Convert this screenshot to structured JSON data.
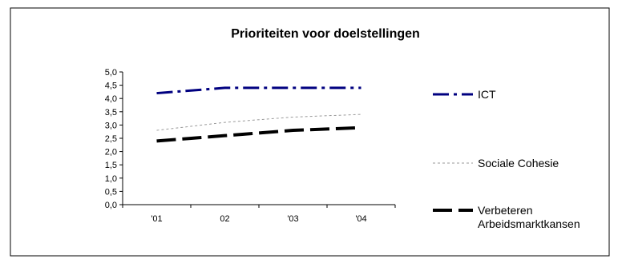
{
  "chart_data": {
    "type": "line",
    "title": "Prioriteiten voor doelstellingen",
    "xlabel": "",
    "ylabel": "",
    "categories": [
      "'01",
      "02",
      "'03",
      "'04"
    ],
    "ylim": [
      0,
      5
    ],
    "y_ticks": [
      "0,0",
      "0,5",
      "1,0",
      "1,5",
      "2,0",
      "2,5",
      "3,0",
      "3,5",
      "4,0",
      "4,5",
      "5,0"
    ],
    "grid": false,
    "legend_position": "right",
    "series": [
      {
        "name": "ICT",
        "values": [
          4.2,
          4.4,
          4.4,
          4.4
        ],
        "color": "#000080",
        "style": "dash-dot"
      },
      {
        "name": "Sociale Cohesie",
        "values": [
          2.8,
          3.1,
          3.3,
          3.4
        ],
        "color": "#999999",
        "style": "dotted"
      },
      {
        "name": "Verbeteren Arbeidsmarktkansen",
        "legend_lines": [
          "Verbeteren",
          "Arbeidsmarktkansen"
        ],
        "values": [
          2.4,
          2.6,
          2.8,
          2.9
        ],
        "color": "#000000",
        "style": "long-dash"
      }
    ]
  }
}
